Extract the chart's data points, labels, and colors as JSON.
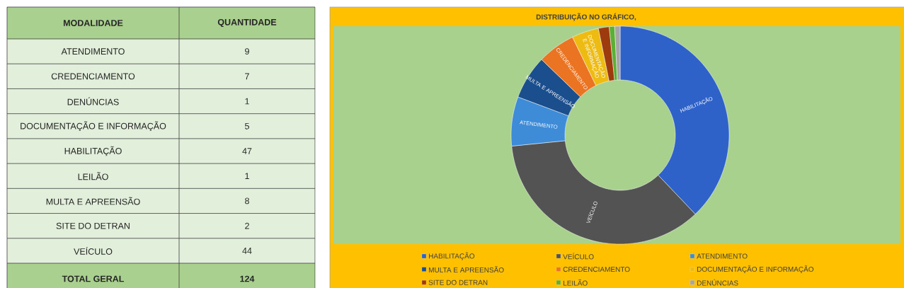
{
  "chart_data": [
    {
      "type": "other",
      "xlabel": "MODALIDADE",
      "ylabel": "QUANTIDADE",
      "categories": [
        "ATENDIMENTO",
        "CREDENCIAMENTO",
        "DENÚNCIAS",
        "DOCUMENTAÇÃO E INFORMAÇÃO",
        "HABILITAÇÃO",
        "LEILÃO",
        "MULTA E APREENSÃO",
        "SITE DO DETRAN",
        "VEÍCULO"
      ],
      "values": [
        9,
        7,
        1,
        5,
        47,
        1,
        8,
        2,
        44
      ],
      "data_labels": true,
      "annotations": [
        "TOTAL GERAL",
        "124"
      ]
    },
    {
      "type": "donut",
      "title": "DISTRIBUIÇÃO NO GRÁFICO,",
      "categories": [
        "HABILITAÇÃO",
        "VEÍCULO",
        "ATENDIMENTO",
        "MULTA E APREENSÃO",
        "CREDENCIAMENTO",
        "DOCUMENTAÇÃO E INFORMAÇÃO",
        "SITE DO DETRAN",
        "LEILÃO",
        "DENÚNCIAS"
      ],
      "values": [
        37.9,
        35.5,
        7.3,
        6.5,
        5.6,
        4.0,
        1.6,
        0.8,
        0.8
      ],
      "colors": [
        "#2e62c8",
        "#535353",
        "#3e8bd8",
        "#1b4e8c",
        "#ea7421",
        "#edbb12",
        "#9e3b0e",
        "#5aaf34",
        "#a5a5a5"
      ],
      "legend": "bottom"
    }
  ]
}
